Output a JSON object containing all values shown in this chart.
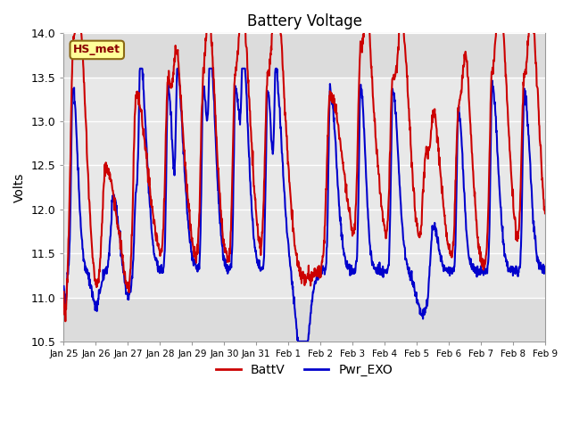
{
  "title": "Battery Voltage",
  "ylabel": "Volts",
  "ylim": [
    10.5,
    14.0
  ],
  "yticks": [
    10.5,
    11.0,
    11.5,
    12.0,
    12.5,
    13.0,
    13.5,
    14.0
  ],
  "xlabel_dates": [
    "Jan 25",
    "Jan 26",
    "Jan 27",
    "Jan 28",
    "Jan 29",
    "Jan 30",
    "Jan 31",
    "Feb 1",
    "Feb 2",
    "Feb 3",
    "Feb 4",
    "Feb 5",
    "Feb 6",
    "Feb 7",
    "Feb 8",
    "Feb 9"
  ],
  "line1_color": "#CC0000",
  "line2_color": "#0000CC",
  "line_width": 1.5,
  "background_color": "#DCDCDC",
  "inner_band_color": "#E8E8E8",
  "grid_color": "#FFFFFF",
  "station_label": "HS_met",
  "legend_labels": [
    "BattV",
    "Pwr_EXO"
  ],
  "title_fontsize": 12,
  "axis_label_fontsize": 10,
  "n_days": 15,
  "points_per_day": 96
}
